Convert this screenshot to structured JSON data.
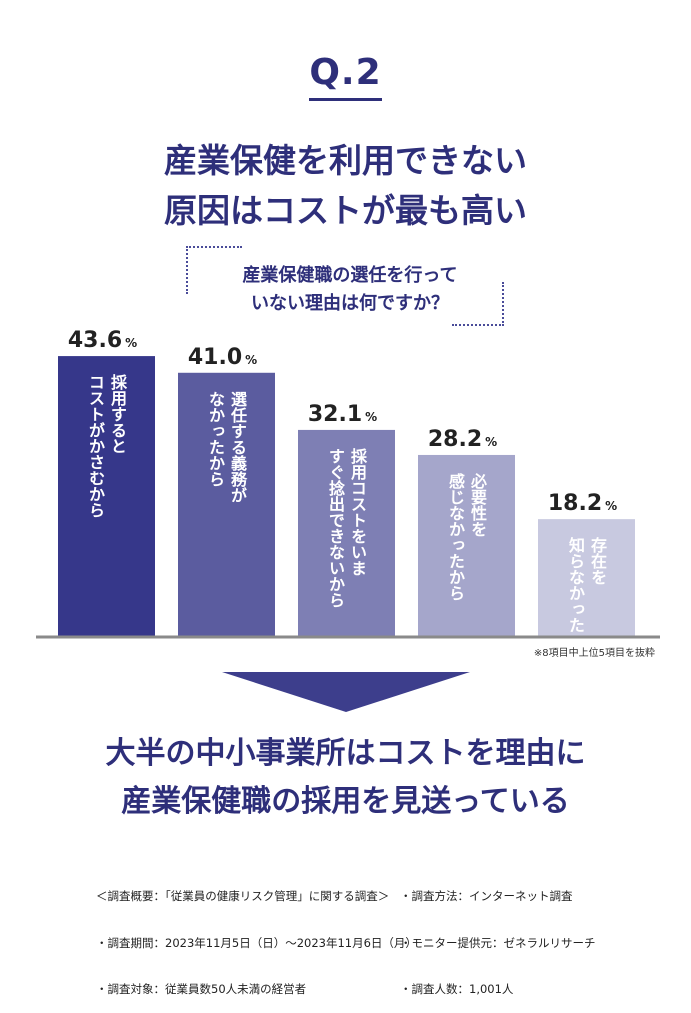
{
  "question_no": "Q.2",
  "headline": [
    "産業保健を利用できない",
    "原因はコストが最も高い"
  ],
  "question": [
    "産業保健職の選任を行って",
    "いない理由は何ですか？"
  ],
  "chart_data": {
    "type": "bar",
    "categories": [
      "採用すると\nコストがかさむから",
      "選任する義務が\nなかったから",
      "採用コストをいま\nすぐ捻出できないから",
      "必要性を\n感じなかったから",
      "存在を\n知らなかった"
    ],
    "values": [
      43.6,
      41.0,
      32.1,
      28.2,
      18.2
    ],
    "value_labels": [
      "43.6",
      "41.0",
      "32.1",
      "28.2",
      "18.2"
    ],
    "unit": "%",
    "ylim": [
      0,
      50
    ],
    "colors": [
      "#36378a",
      "#5b5c9f",
      "#7e7fb4",
      "#a5a6cb",
      "#c8c9e0"
    ],
    "grid": false
  },
  "note": "※8項目中上位5項目を抜粋",
  "conclusion": [
    "大半の中小事業所はコストを理由に",
    "産業保健職の採用を見送っている"
  ],
  "survey_left": [
    "＜調査概要：「従業員の健康リスク管理」に関する調査＞",
    "・調査期間：2023年11月5日（日）～2023年11月6日（月）",
    "・調査対象：従業員数50人未満の経営者"
  ],
  "survey_right": [
    "・調査方法：インターネット調査",
    "・モニター提供元：ゼネラルリサーチ",
    "・調査人数：1,001人"
  ]
}
